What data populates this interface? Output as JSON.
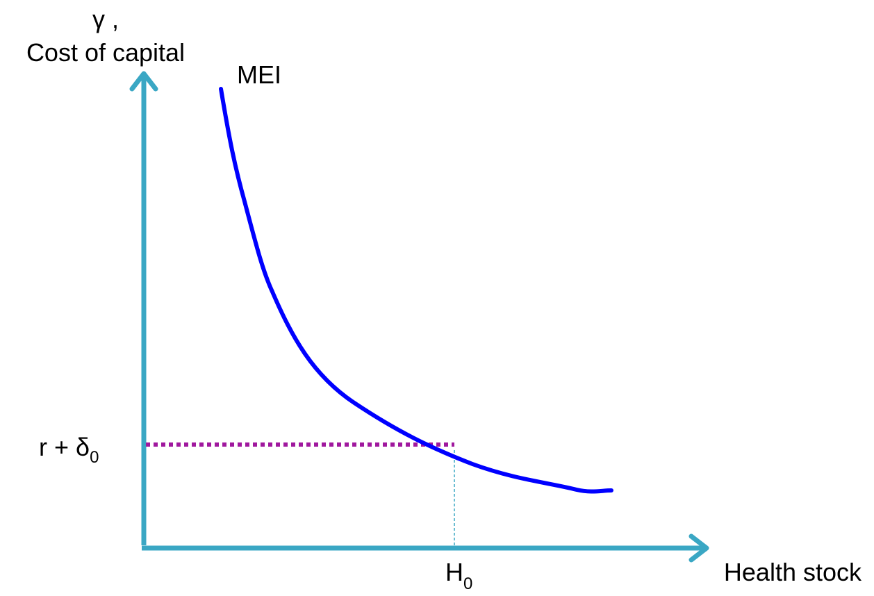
{
  "diagram": {
    "y_axis_label_line1": "γ ,",
    "y_axis_label_line2": "Cost of capital",
    "x_axis_label": "Health stock",
    "curve_label": "MEI",
    "y_marker": {
      "base": "r + δ",
      "subscript": "0"
    },
    "x_marker": {
      "base": "H",
      "subscript": "0"
    }
  },
  "colors": {
    "axis": "#3aa7c4",
    "curve": "#0000ff",
    "dotted_line": "#a0189e",
    "guide_line": "#3aa7c4"
  }
}
